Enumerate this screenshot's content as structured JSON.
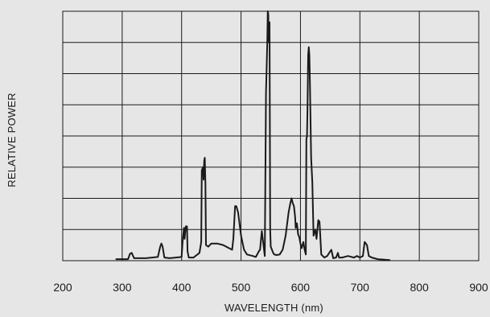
{
  "chart_data": {
    "type": "line",
    "title": "",
    "xlabel": "WAVELENGTH (nm)",
    "ylabel": "RELATIVE POWER",
    "xlim": [
      200,
      900
    ],
    "ylim": [
      0,
      8
    ],
    "x_ticks": [
      "200",
      "300",
      "400",
      "500",
      "600",
      "700",
      "800",
      "900"
    ],
    "y_tick_labels_shown": false,
    "y_gridlines": 8,
    "grid": true,
    "legend": "none",
    "line_color": "#1a1a1a",
    "background_color": "#e6e6e6",
    "series": [
      {
        "x": [
          290,
          310,
          313,
          316,
          320,
          340,
          360,
          364,
          366,
          368,
          371,
          380,
          400,
          402,
          404,
          405,
          407,
          409,
          410,
          412,
          420,
          430,
          433,
          434,
          436,
          437,
          438,
          439,
          440,
          441,
          445,
          450,
          460,
          470,
          480,
          485,
          487,
          490,
          492,
          495,
          500,
          505,
          510,
          520,
          525,
          530,
          532,
          535,
          540,
          542,
          544,
          545,
          546,
          546.5,
          547,
          548,
          549,
          550,
          552,
          554,
          556,
          560,
          565,
          570,
          575,
          580,
          583,
          585,
          587,
          589,
          590,
          591,
          592,
          594,
          596,
          598,
          600,
          602,
          605,
          607,
          609,
          610,
          611,
          612,
          613,
          614,
          615,
          616,
          618,
          620,
          622,
          625,
          627,
          630,
          632,
          635,
          640,
          645,
          650,
          652,
          655,
          660,
          663,
          665,
          670,
          680,
          690,
          695,
          700,
          702,
          705,
          708,
          710,
          712,
          715,
          720,
          730,
          750
        ],
        "y": [
          0.05,
          0.05,
          0.22,
          0.25,
          0.08,
          0.08,
          0.12,
          0.45,
          0.55,
          0.45,
          0.1,
          0.08,
          0.12,
          0.7,
          1.05,
          0.7,
          1.1,
          1.1,
          0.3,
          0.1,
          0.1,
          0.25,
          0.6,
          2.9,
          3.0,
          2.6,
          3.2,
          3.3,
          2.5,
          0.5,
          0.45,
          0.55,
          0.55,
          0.5,
          0.4,
          0.35,
          0.7,
          1.75,
          1.75,
          1.55,
          0.8,
          0.35,
          0.2,
          0.15,
          0.12,
          0.3,
          0.35,
          0.95,
          0.15,
          5.4,
          6.9,
          8.0,
          7.9,
          7.05,
          7.0,
          7.65,
          1.0,
          0.45,
          0.35,
          0.25,
          0.2,
          0.18,
          0.2,
          0.35,
          0.8,
          1.55,
          1.85,
          2.0,
          1.85,
          1.75,
          1.6,
          1.4,
          1.05,
          1.2,
          0.85,
          0.75,
          0.55,
          0.4,
          0.6,
          0.35,
          0.2,
          3.9,
          4.0,
          5.1,
          6.6,
          6.85,
          6.6,
          5.7,
          3.3,
          2.5,
          0.8,
          1.0,
          0.7,
          1.3,
          1.25,
          0.2,
          0.1,
          0.15,
          0.3,
          0.35,
          0.08,
          0.1,
          0.25,
          0.1,
          0.1,
          0.15,
          0.1,
          0.15,
          0.1,
          0.12,
          0.15,
          0.6,
          0.55,
          0.5,
          0.15,
          0.1,
          0.05,
          0.02
        ]
      }
    ]
  }
}
